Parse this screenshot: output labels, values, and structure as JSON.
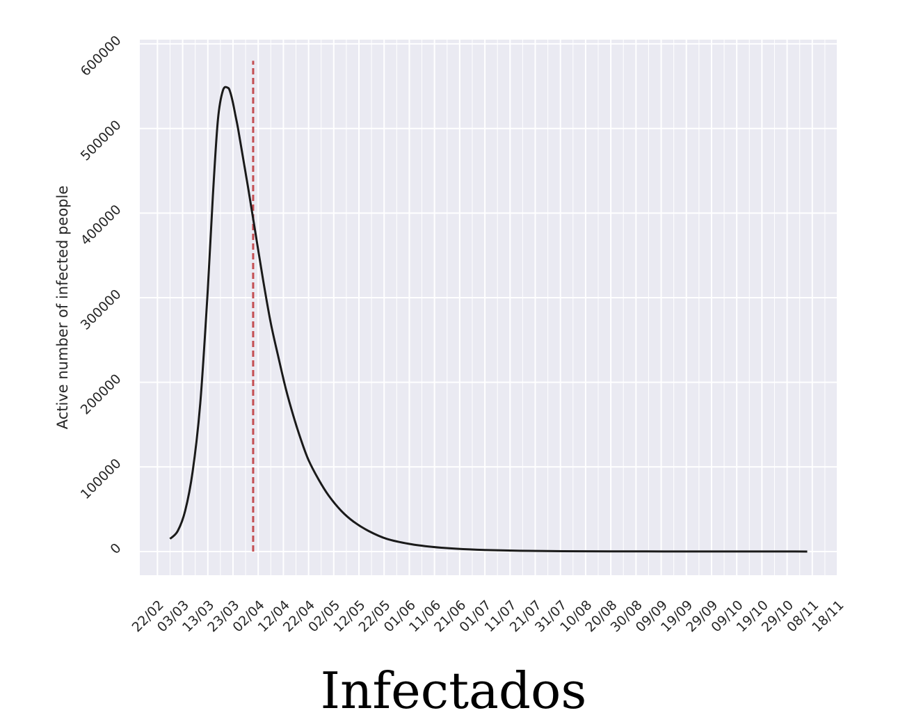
{
  "chart_data": {
    "type": "line",
    "title": "",
    "caption": "Infectados",
    "xlabel": "",
    "ylabel": "Active number of infected people",
    "x_tick_labels": [
      "22/02",
      "03/03",
      "13/03",
      "23/03",
      "02/04",
      "12/04",
      "22/04",
      "02/05",
      "12/05",
      "22/05",
      "01/06",
      "11/06",
      "21/06",
      "01/07",
      "11/07",
      "21/07",
      "31/07",
      "10/08",
      "20/08",
      "30/08",
      "09/09",
      "19/09",
      "29/09",
      "09/10",
      "19/10",
      "29/10",
      "08/11",
      "18/11"
    ],
    "y_ticks": [
      0,
      100000,
      200000,
      300000,
      400000,
      500000,
      600000
    ],
    "xlim": [
      "2020-02-15",
      "2020-11-18"
    ],
    "ylim": [
      -28000,
      605000
    ],
    "grid": true,
    "series": [
      {
        "color": "#1a1a1a",
        "x": [
          "2020-02-27",
          "2020-03-01",
          "2020-03-04",
          "2020-03-07",
          "2020-03-10",
          "2020-03-13",
          "2020-03-15",
          "2020-03-17",
          "2020-03-19",
          "2020-03-21",
          "2020-03-22",
          "2020-03-23",
          "2020-03-24",
          "2020-03-25",
          "2020-03-27",
          "2020-03-29",
          "2020-04-01",
          "2020-04-04",
          "2020-04-07",
          "2020-04-10",
          "2020-04-13",
          "2020-04-16",
          "2020-04-19",
          "2020-04-22",
          "2020-04-26",
          "2020-04-30",
          "2020-05-05",
          "2020-05-10",
          "2020-05-16",
          "2020-05-23",
          "2020-06-01",
          "2020-06-10",
          "2020-06-20",
          "2020-07-01",
          "2020-07-15",
          "2020-08-01",
          "2020-08-20",
          "2020-09-10",
          "2020-10-01",
          "2020-10-20",
          "2020-11-06"
        ],
        "y": [
          15000,
          24000,
          48000,
          95000,
          175000,
          310000,
          420000,
          510000,
          545000,
          548000,
          542000,
          530000,
          515000,
          500000,
          465000,
          430000,
          375000,
          320000,
          270000,
          230000,
          192000,
          160000,
          132000,
          108000,
          85000,
          66000,
          48000,
          35000,
          24000,
          15000,
          9000,
          5500,
          3200,
          1800,
          900,
          400,
          200,
          100,
          50,
          20,
          0
        ]
      }
    ],
    "reference_line": {
      "x": "2020-03-31",
      "y_top": 580000,
      "color": "#c44e52",
      "style": "dashed"
    }
  }
}
